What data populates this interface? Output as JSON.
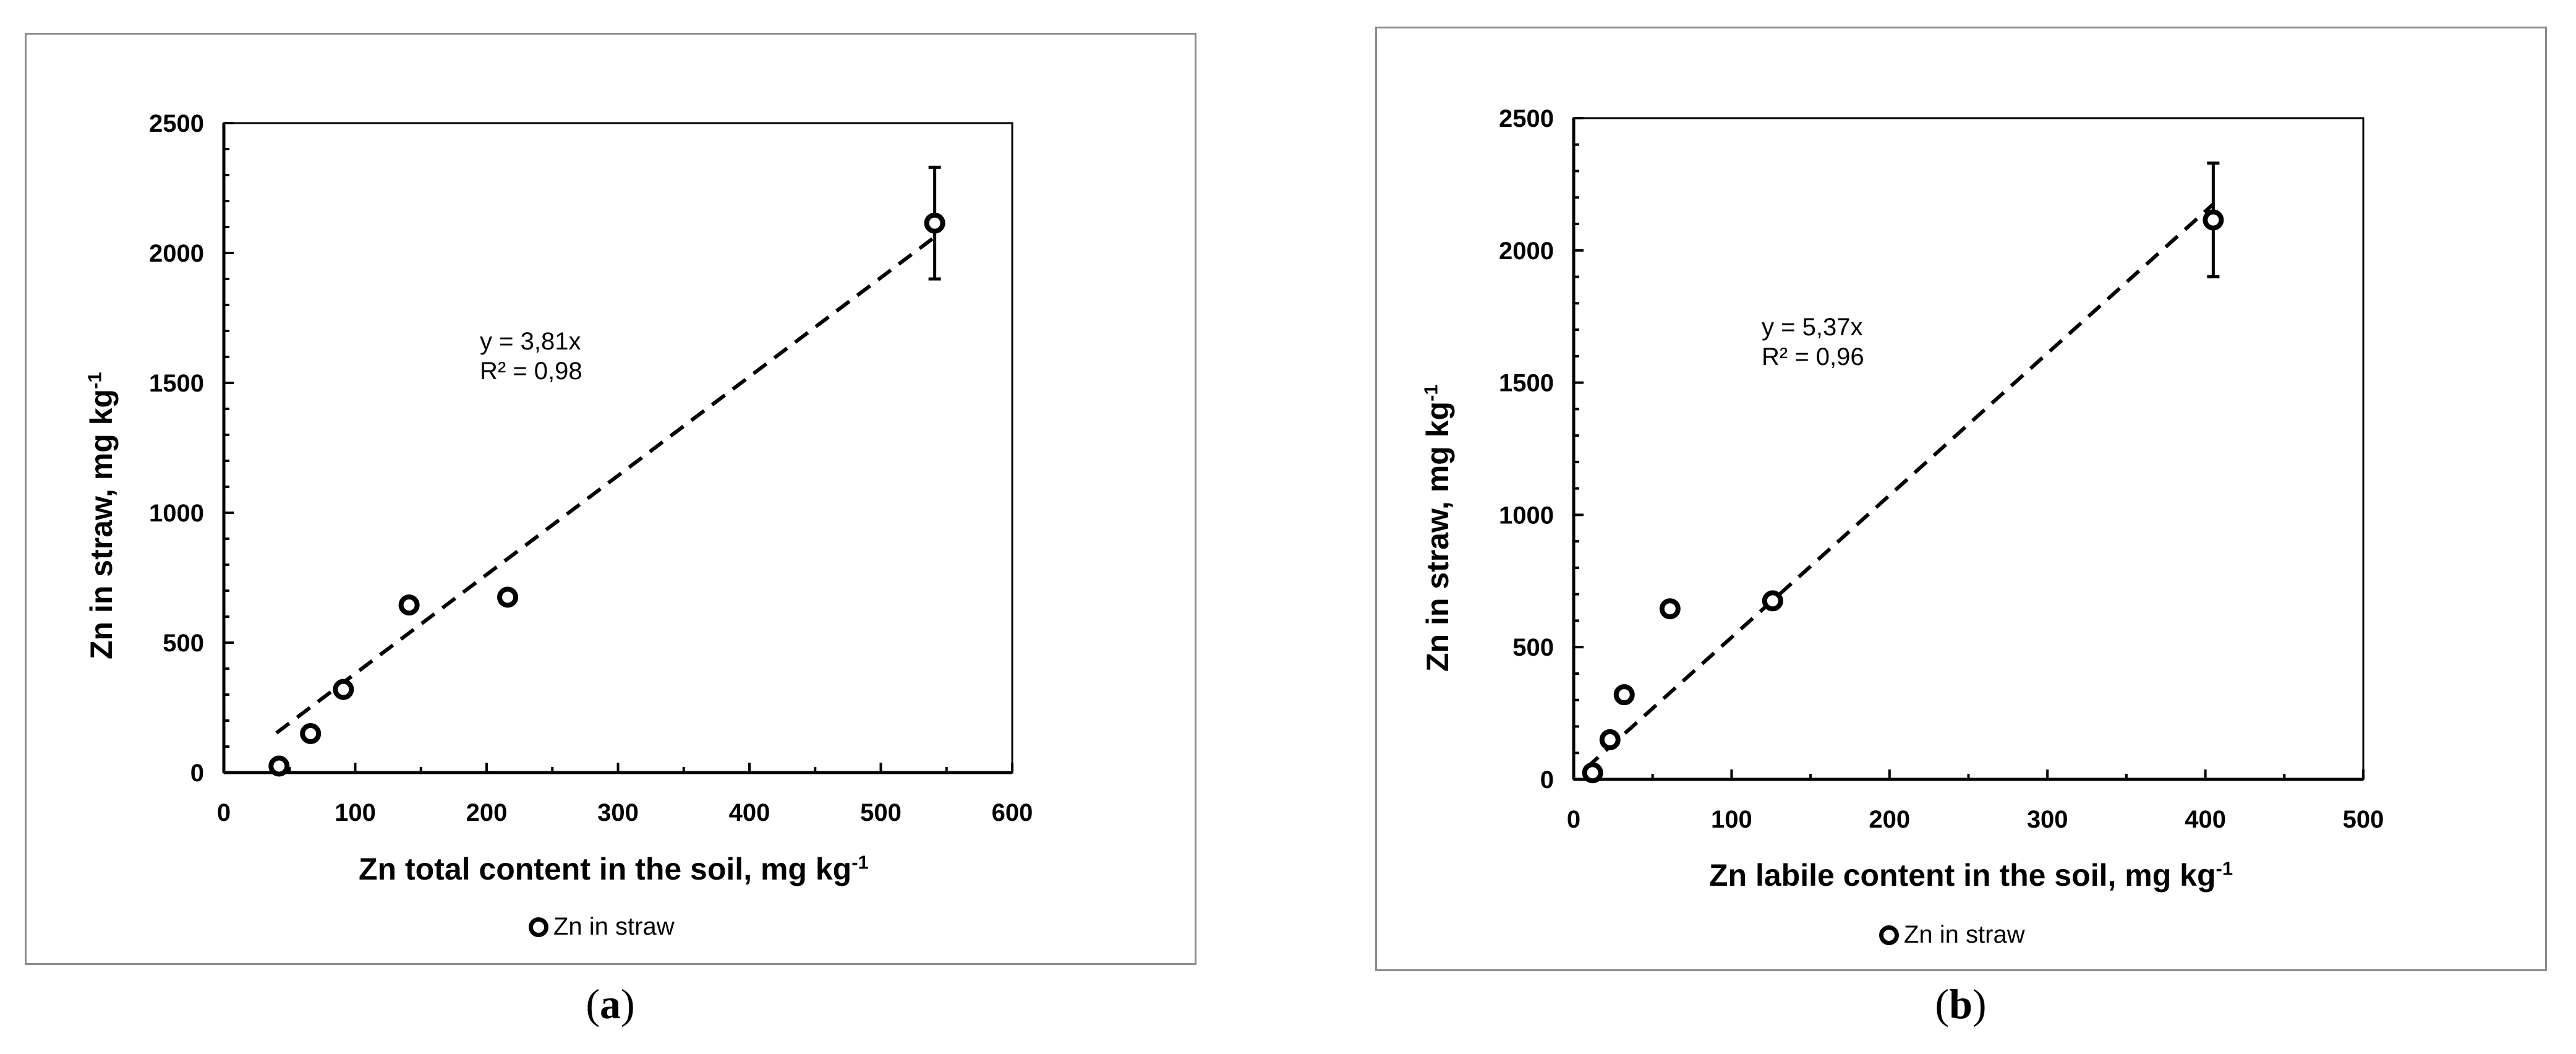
{
  "chart_data": [
    {
      "type": "scatter",
      "panel_label": "a",
      "xlabel": "Zn total content  in the soil, mg kg",
      "xlabel_sup": "-1",
      "ylabel": "Zn in straw, mg kg",
      "ylabel_sup": "-1",
      "xlim": [
        0,
        600
      ],
      "ylim": [
        0,
        2500
      ],
      "x_ticks": [
        "0",
        "100",
        "200",
        "300",
        "400",
        "500",
        "600"
      ],
      "y_ticks": [
        "0",
        "500",
        "1000",
        "1500",
        "2000",
        "2500"
      ],
      "legend": "Zn in straw",
      "legend_position": "bottom",
      "grid": false,
      "series": [
        {
          "name": "Zn in straw",
          "x": [
            42,
            66,
            91,
            141,
            216,
            541
          ],
          "y": [
            25,
            150,
            320,
            645,
            675,
            2115
          ],
          "error_y": [
            0,
            0,
            0,
            0,
            0,
            215
          ]
        }
      ],
      "trendline": {
        "slope": 3.81,
        "x_range": [
          40,
          541
        ],
        "style": "dashed"
      },
      "equation": "y = 3,81x",
      "r2": "R² = 0,98"
    },
    {
      "type": "scatter",
      "panel_label": "b",
      "xlabel": "Zn labile content  in the soil, mg kg",
      "xlabel_sup": "-1",
      "ylabel": "Zn in straw, mg kg",
      "ylabel_sup": "-1",
      "xlim": [
        0,
        500
      ],
      "ylim": [
        0,
        2500
      ],
      "x_ticks": [
        "0",
        "100",
        "200",
        "300",
        "400",
        "500"
      ],
      "y_ticks": [
        "0",
        "500",
        "1000",
        "1500",
        "2000",
        "2500"
      ],
      "legend": "Zn in straw",
      "legend_position": "bottom",
      "grid": false,
      "series": [
        {
          "name": "Zn in straw",
          "x": [
            12,
            23,
            32,
            61,
            126,
            405
          ],
          "y": [
            25,
            150,
            320,
            645,
            675,
            2115
          ],
          "error_y": [
            0,
            0,
            0,
            0,
            0,
            215
          ]
        }
      ],
      "trendline": {
        "slope": 5.37,
        "x_range": [
          8,
          405
        ],
        "style": "dashed"
      },
      "equation": "y = 5,37x",
      "r2": "R² = 0,96"
    }
  ]
}
